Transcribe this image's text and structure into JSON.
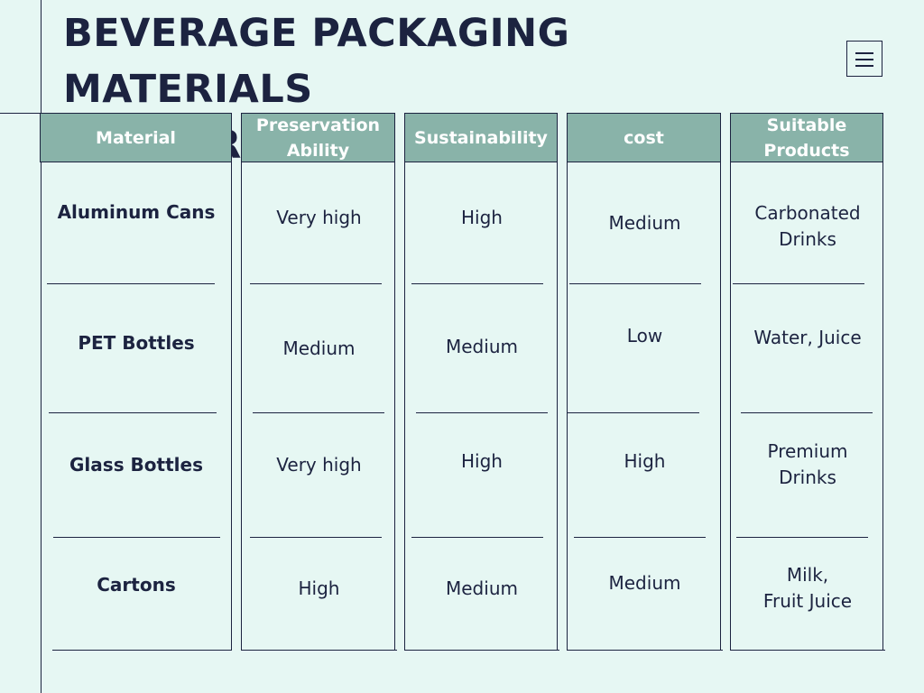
{
  "title": {
    "line1": "BEVERAGE PACKAGING MATERIALS",
    "line2": "COMPARISON"
  },
  "menu_icon": "hamburger-menu-icon",
  "colors": {
    "background": "#e6f7f3",
    "header_fill": "#89b3a9",
    "header_text": "#ffffff",
    "text": "#1c2340"
  },
  "table": {
    "headers": [
      "Material",
      "Preservation\nAbility",
      "Sustainability",
      "cost",
      "Suitable\nProducts"
    ],
    "rows": [
      [
        "Aluminum Cans",
        "Very high",
        "High",
        "Medium",
        "Carbonated\nDrinks"
      ],
      [
        "PET Bottles",
        "Medium",
        "Medium",
        "Low",
        "Water, Juice"
      ],
      [
        "Glass Bottles",
        "Very high",
        "High",
        "High",
        "Premium\nDrinks"
      ],
      [
        "Cartons",
        "High",
        "Medium",
        "Medium",
        "Milk,\nFruit Juice"
      ]
    ]
  }
}
